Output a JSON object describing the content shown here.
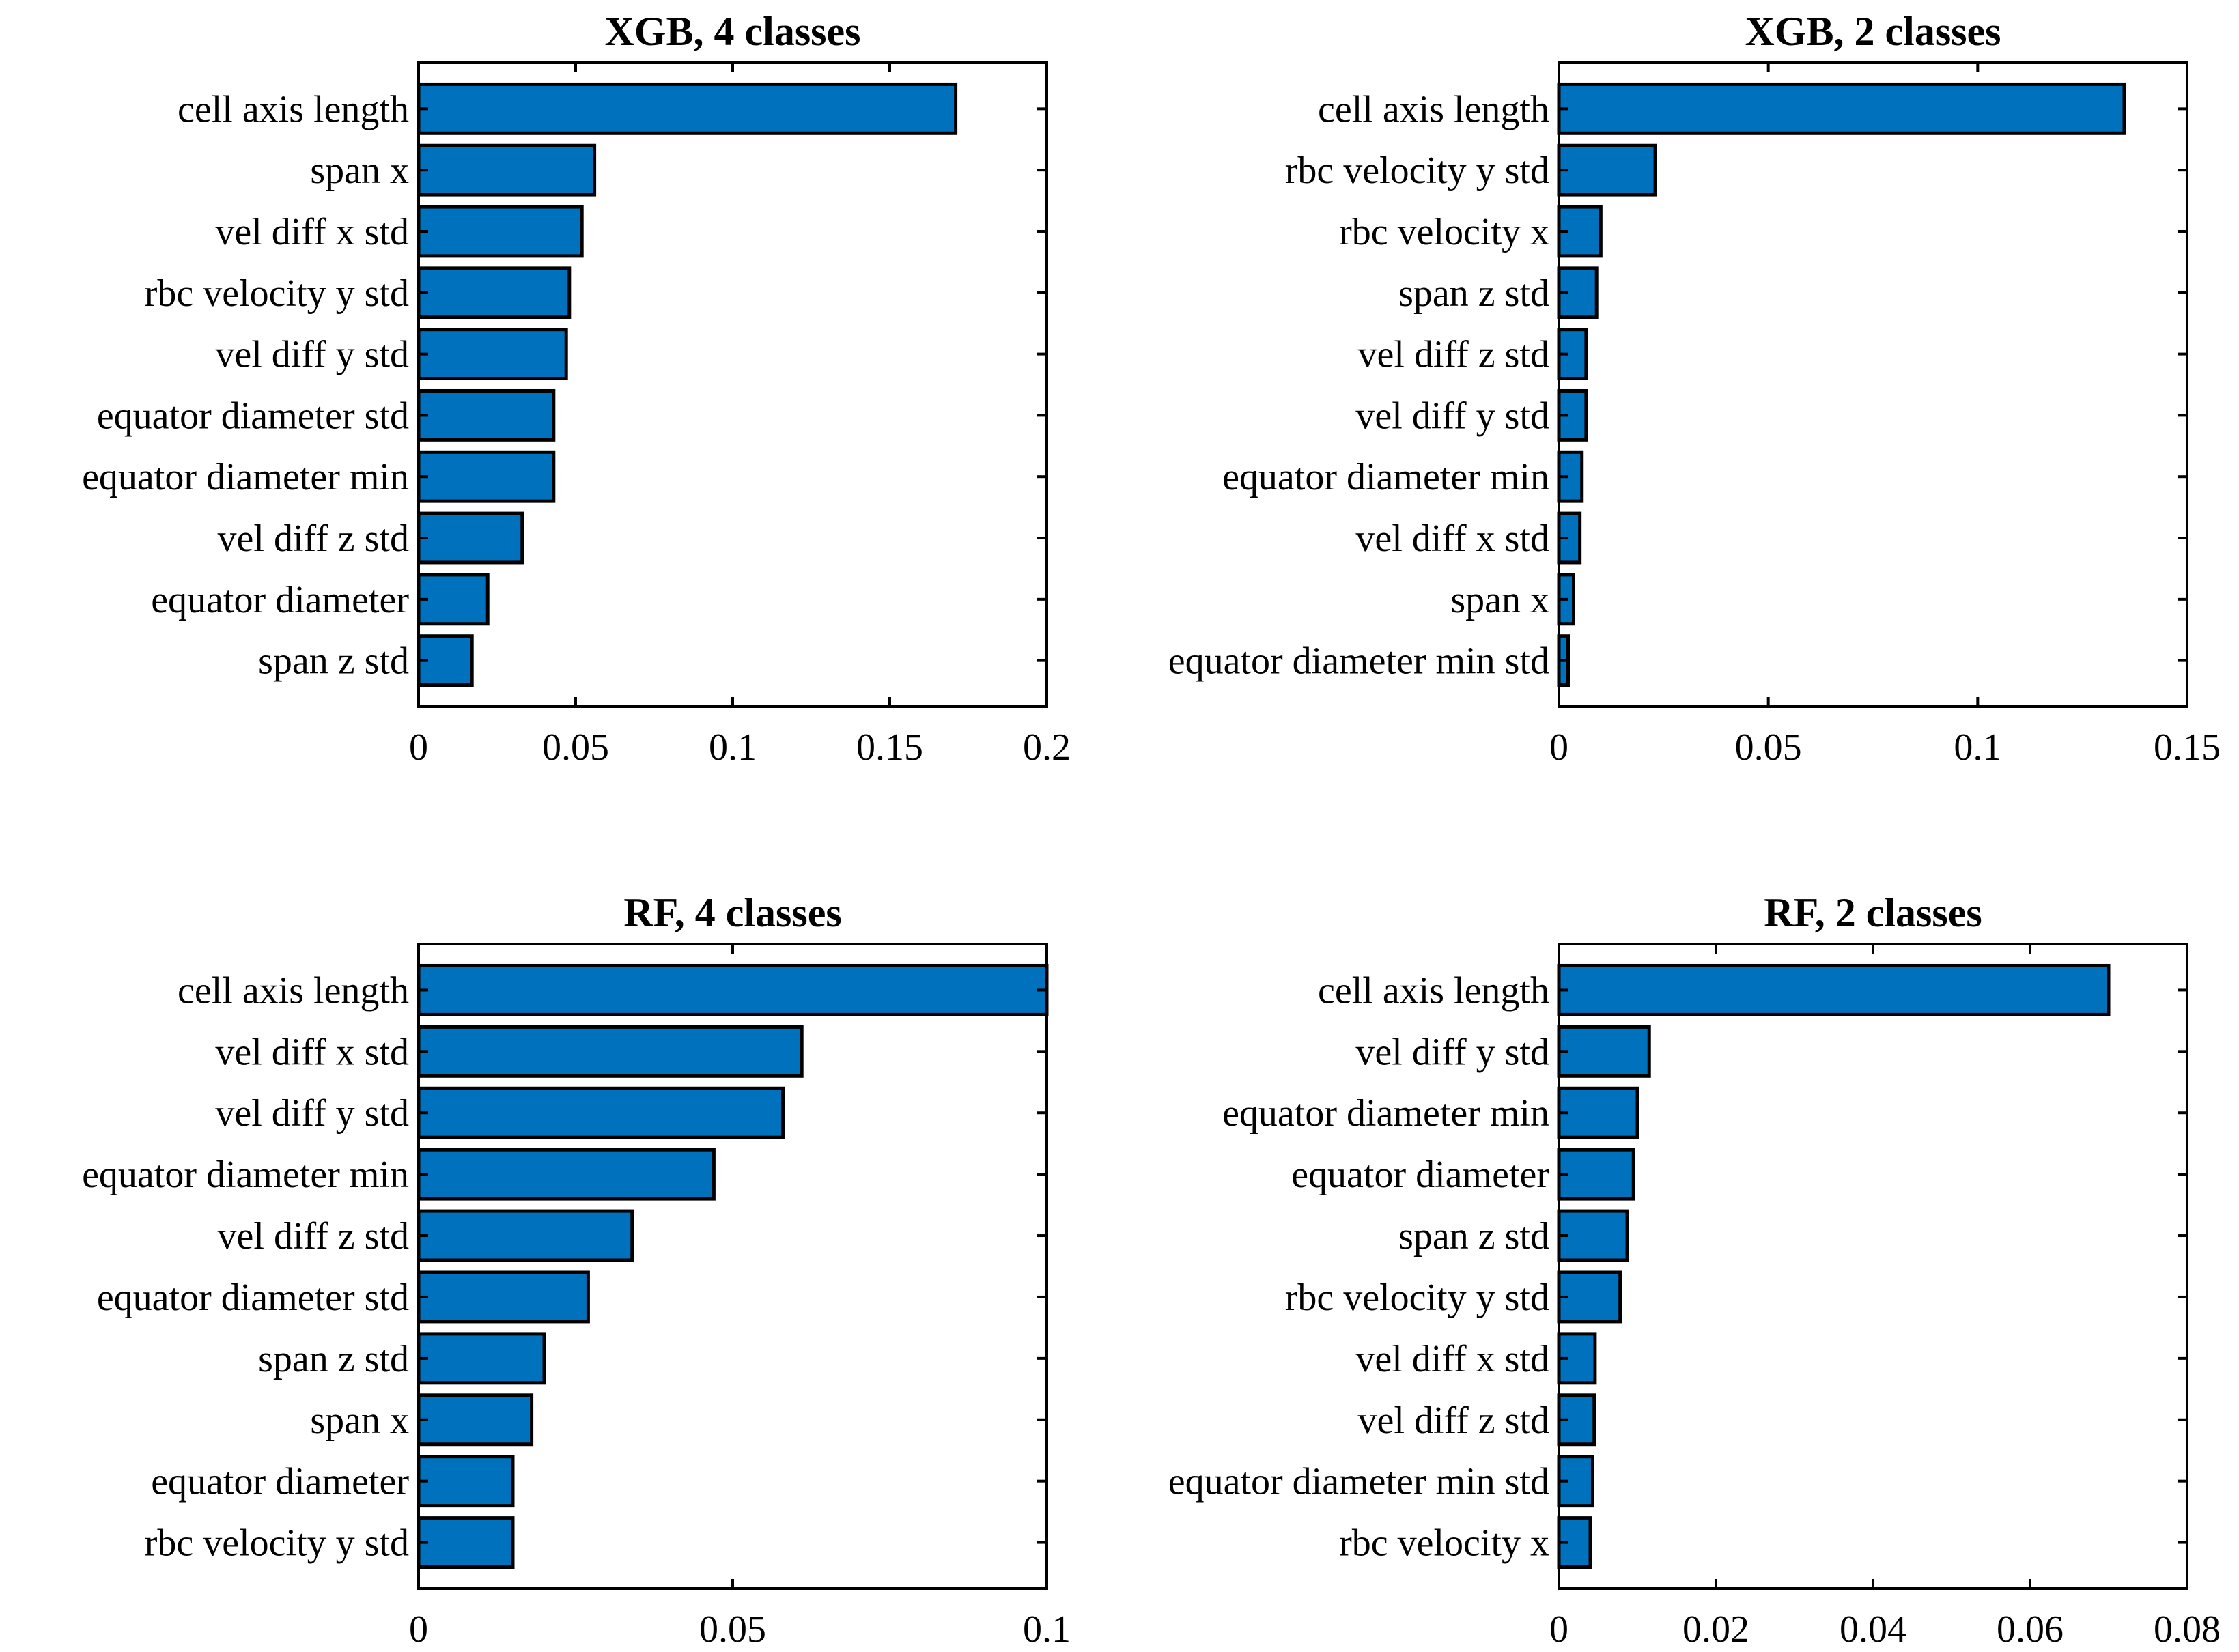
{
  "colors": {
    "bar_fill": "#0072BD",
    "bar_edge": "#000000",
    "axes": "#000000",
    "background": "#FFFFFF"
  },
  "chart_data": [
    {
      "type": "bar",
      "orientation": "horizontal",
      "title": "XGB, 4 classes",
      "categories": [
        "cell axis length",
        "span x",
        "vel diff x std",
        "rbc velocity y std",
        "vel diff y std",
        "equator diameter std",
        "equator diameter min",
        "vel diff z std",
        "equator diameter",
        "span z std"
      ],
      "values": [
        0.171,
        0.056,
        0.052,
        0.048,
        0.047,
        0.043,
        0.043,
        0.033,
        0.022,
        0.017
      ],
      "xlim": [
        0,
        0.2
      ],
      "xticks": [
        0,
        0.05,
        0.1,
        0.15,
        0.2
      ],
      "xtick_labels": [
        "0",
        "0.05",
        "0.1",
        "0.15",
        "0.2"
      ],
      "xlabel": "",
      "ylabel": "",
      "grid": false,
      "legend": false
    },
    {
      "type": "bar",
      "orientation": "horizontal",
      "title": "XGB, 2 classes",
      "categories": [
        "cell axis length",
        "rbc velocity y std",
        "rbc velocity x",
        "span z std",
        "vel diff z std",
        "vel diff y std",
        "equator diameter min",
        "vel diff x std",
        "span x",
        "equator diameter min std"
      ],
      "values": [
        0.135,
        0.023,
        0.01,
        0.009,
        0.0065,
        0.0065,
        0.0055,
        0.005,
        0.0035,
        0.0022
      ],
      "xlim": [
        0,
        0.15
      ],
      "xticks": [
        0,
        0.05,
        0.1,
        0.15
      ],
      "xtick_labels": [
        "0",
        "0.05",
        "0.1",
        "0.15"
      ],
      "xlabel": "",
      "ylabel": "",
      "grid": false,
      "legend": false
    },
    {
      "type": "bar",
      "orientation": "horizontal",
      "title": "RF, 4 classes",
      "categories": [
        "cell axis length",
        "vel diff x std",
        "vel diff y std",
        "equator diameter min",
        "vel diff z std",
        "equator diameter std",
        "span z std",
        "span x",
        "equator diameter",
        "rbc velocity y std"
      ],
      "values": [
        0.105,
        0.061,
        0.058,
        0.047,
        0.034,
        0.027,
        0.02,
        0.018,
        0.015,
        0.015
      ],
      "xlim": [
        0,
        0.1
      ],
      "xticks": [
        0,
        0.05,
        0.1
      ],
      "xtick_labels": [
        "0",
        "0.05",
        "0.1"
      ],
      "xlabel": "",
      "ylabel": "",
      "grid": false,
      "legend": false
    },
    {
      "type": "bar",
      "orientation": "horizontal",
      "title": "RF, 2 classes",
      "categories": [
        "cell axis length",
        "vel diff y std",
        "equator diameter min",
        "equator diameter",
        "span z std",
        "rbc velocity y std",
        "vel diff x std",
        "vel diff z std",
        "equator diameter min std",
        "rbc velocity x"
      ],
      "values": [
        0.07,
        0.0115,
        0.01,
        0.0095,
        0.0087,
        0.0078,
        0.0046,
        0.0045,
        0.0043,
        0.004
      ],
      "xlim": [
        0,
        0.08
      ],
      "xticks": [
        0,
        0.02,
        0.04,
        0.06,
        0.08
      ],
      "xtick_labels": [
        "0",
        "0.02",
        "0.04",
        "0.06",
        "0.08"
      ],
      "xlabel": "",
      "ylabel": "",
      "grid": false,
      "legend": false
    }
  ]
}
